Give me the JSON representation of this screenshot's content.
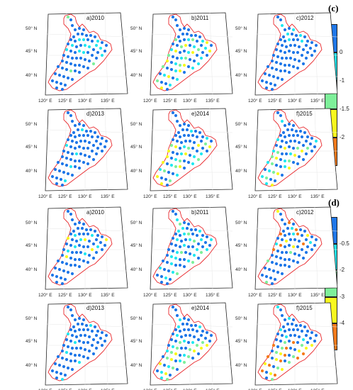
{
  "groups": [
    {
      "id": "c",
      "label": "(c)",
      "panels": [
        {
          "title": "a)2010"
        },
        {
          "title": "b)2011"
        },
        {
          "title": "c)2012"
        },
        {
          "title": "d)2013"
        },
        {
          "title": "e)2014"
        },
        {
          "title": "f)2015"
        }
      ],
      "colorbar": {
        "colors": [
          "#1f77e8",
          "#22e8f0",
          "#7ef09a",
          "#f8f81e",
          "#f57a1a"
        ],
        "ticks": [
          "0",
          "-1",
          "-1.5",
          "-2"
        ]
      }
    },
    {
      "id": "d",
      "label": "(d)",
      "panels": [
        {
          "title": "a)2010"
        },
        {
          "title": "b)2011"
        },
        {
          "title": "c)2012"
        },
        {
          "title": "d)2013"
        },
        {
          "title": "e)2014"
        },
        {
          "title": "f)2015"
        }
      ],
      "colorbar": {
        "colors": [
          "#1f77e8",
          "#22e8f0",
          "#7ef09a",
          "#f8f81e",
          "#f57a1a"
        ],
        "ticks": [
          "-0.5",
          "-2",
          "-3",
          "-4"
        ]
      }
    }
  ],
  "axes": {
    "lat_labels": [
      "50° N",
      "45° N",
      "40° N"
    ],
    "lon_labels": [
      "120° E",
      "125° E",
      "130° E",
      "135° E"
    ]
  }
}
